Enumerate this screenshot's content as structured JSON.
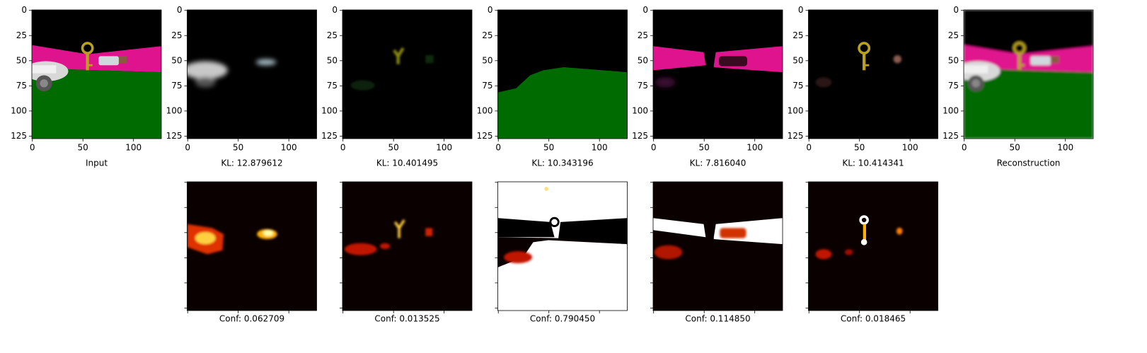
{
  "panels_top": [
    {
      "caption": "Input"
    },
    {
      "caption": "KL: 12.879612"
    },
    {
      "caption": "KL: 10.401495"
    },
    {
      "caption": "KL: 10.343196"
    },
    {
      "caption": "KL: 7.816040"
    },
    {
      "caption": "KL: 10.414341"
    },
    {
      "caption": "Reconstruction"
    }
  ],
  "panels_bottom": [
    {
      "caption": "Conf: 0.062709"
    },
    {
      "caption": "Conf: 0.013525"
    },
    {
      "caption": "Conf: 0.790450"
    },
    {
      "caption": "Conf: 0.114850"
    },
    {
      "caption": "Conf: 0.018465"
    }
  ],
  "axes": {
    "xticks": [
      0,
      50,
      100
    ],
    "yticks": [
      0,
      25,
      50,
      75,
      100,
      125
    ]
  }
}
